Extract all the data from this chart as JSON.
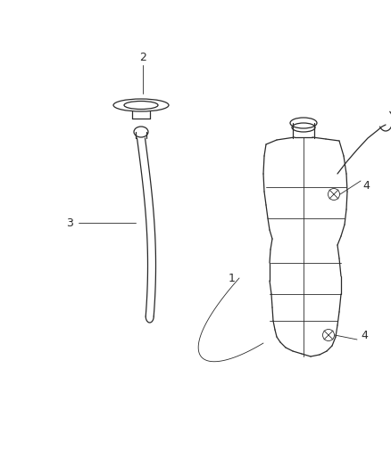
{
  "background_color": "#ffffff",
  "line_color": "#2a2a2a",
  "label_color": "#2a2a2a",
  "figure_width": 4.38,
  "figure_height": 5.33,
  "dpi": 100,
  "label_fontsize": 9
}
